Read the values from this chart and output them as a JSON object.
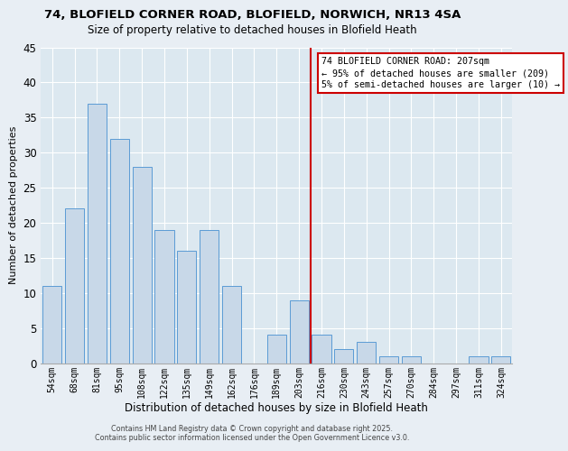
{
  "title1": "74, BLOFIELD CORNER ROAD, BLOFIELD, NORWICH, NR13 4SA",
  "title2": "Size of property relative to detached houses in Blofield Heath",
  "xlabel": "Distribution of detached houses by size in Blofield Heath",
  "ylabel": "Number of detached properties",
  "bar_labels": [
    "54sqm",
    "68sqm",
    "81sqm",
    "95sqm",
    "108sqm",
    "122sqm",
    "135sqm",
    "149sqm",
    "162sqm",
    "176sqm",
    "189sqm",
    "203sqm",
    "216sqm",
    "230sqm",
    "243sqm",
    "257sqm",
    "270sqm",
    "284sqm",
    "297sqm",
    "311sqm",
    "324sqm"
  ],
  "bar_values": [
    11,
    22,
    37,
    32,
    28,
    19,
    16,
    19,
    11,
    0,
    4,
    9,
    4,
    2,
    3,
    1,
    1,
    0,
    0,
    1,
    1
  ],
  "bar_color": "#c8d8e8",
  "bar_edge_color": "#5b9bd5",
  "vline_x_index": 11.5,
  "vline_color": "#cc0000",
  "ylim": [
    0,
    45
  ],
  "yticks": [
    0,
    5,
    10,
    15,
    20,
    25,
    30,
    35,
    40,
    45
  ],
  "annotation_line1": "74 BLOFIELD CORNER ROAD: 207sqm",
  "annotation_line2": "← 95% of detached houses are smaller (209)",
  "annotation_line3": "5% of semi-detached houses are larger (10) →",
  "annotation_box_color": "#ffffff",
  "annotation_box_edge": "#cc0000",
  "footer1": "Contains HM Land Registry data © Crown copyright and database right 2025.",
  "footer2": "Contains public sector information licensed under the Open Government Licence v3.0.",
  "bg_color": "#e8eef4",
  "plot_bg_color": "#dce8f0"
}
